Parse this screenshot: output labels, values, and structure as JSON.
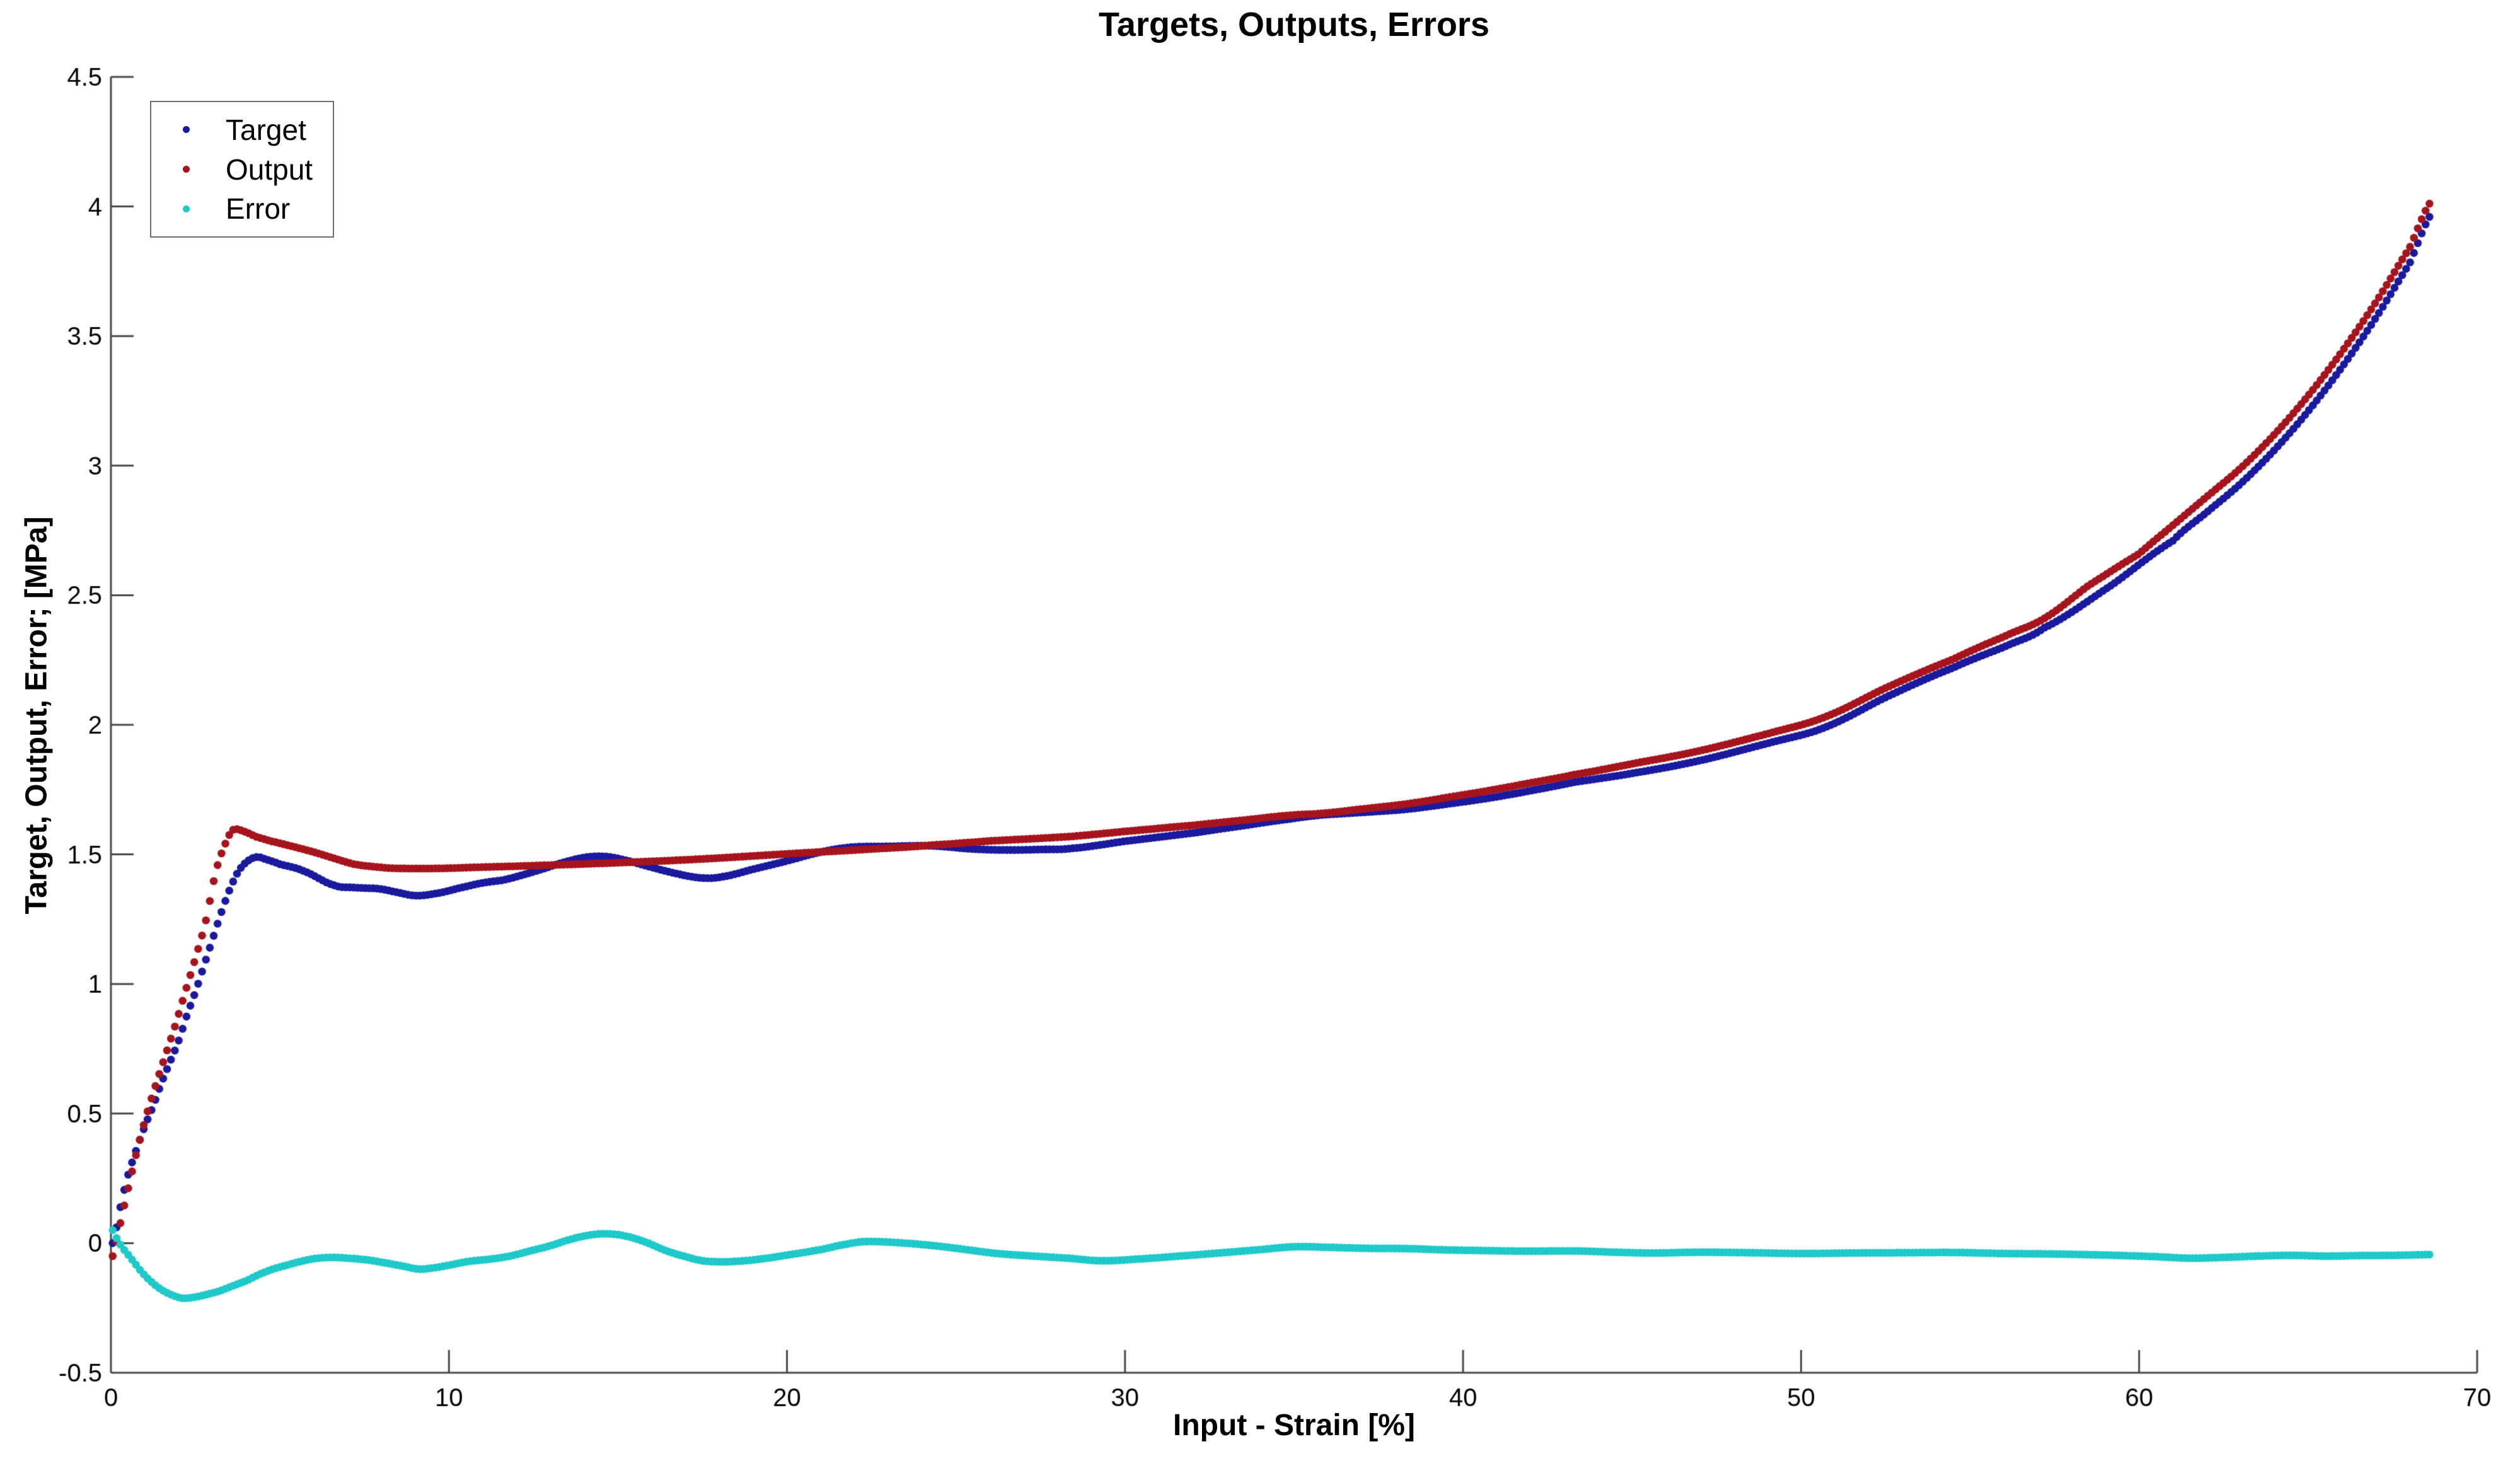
{
  "chart_data": {
    "type": "scatter",
    "title": "Targets, Outputs, Errors",
    "xlabel": "Input - Strain [%]",
    "ylabel": "Target, Output, Error; [MPa]",
    "xlim": [
      0,
      70
    ],
    "ylim": [
      -0.5,
      4.5
    ],
    "grid": false,
    "marker": "dot",
    "xticks": {
      "values": [
        0,
        10,
        20,
        30,
        40,
        50,
        60,
        70
      ],
      "labels": [
        "0",
        "10",
        "20",
        "30",
        "40",
        "50",
        "60",
        "70"
      ]
    },
    "yticks": {
      "values": [
        -0.5,
        0,
        0.5,
        1,
        1.5,
        2,
        2.5,
        3,
        3.5,
        4,
        4.5
      ],
      "labels": [
        "-0.5",
        "0",
        "0.5",
        "1",
        "1.5",
        "2",
        "2.5",
        "3",
        "3.5",
        "4",
        "4.5"
      ]
    },
    "legend": {
      "position": "top-left",
      "entries": [
        {
          "label": "Target",
          "color": "#1A1A9E"
        },
        {
          "label": "Output",
          "color": "#A6151D"
        },
        {
          "label": "Error",
          "color": "#1FC9C9"
        }
      ]
    },
    "series": [
      {
        "name": "Target",
        "color": "#1A1A9E",
        "points": [
          [
            0.05,
            0.0
          ],
          [
            0.3,
            0.15
          ],
          [
            0.5,
            0.26
          ],
          [
            0.75,
            0.36
          ],
          [
            1,
            0.45
          ],
          [
            1.25,
            0.53
          ],
          [
            1.5,
            0.62
          ],
          [
            1.75,
            0.7
          ],
          [
            2,
            0.78
          ],
          [
            2.25,
            0.88
          ],
          [
            2.5,
            0.97
          ],
          [
            2.75,
            1.07
          ],
          [
            3,
            1.17
          ],
          [
            3.25,
            1.27
          ],
          [
            3.5,
            1.36
          ],
          [
            3.75,
            1.43
          ],
          [
            4,
            1.47
          ],
          [
            4.3,
            1.49
          ],
          [
            4.6,
            1.48
          ],
          [
            5,
            1.462
          ],
          [
            5.7,
            1.436
          ],
          [
            6.6,
            1.381
          ],
          [
            7.2,
            1.372
          ],
          [
            7.9,
            1.368
          ],
          [
            8.3,
            1.358
          ],
          [
            9,
            1.341
          ],
          [
            9.7,
            1.351
          ],
          [
            10.3,
            1.37
          ],
          [
            11,
            1.39
          ],
          [
            11.6,
            1.401
          ],
          [
            12.1,
            1.418
          ],
          [
            12.7,
            1.441
          ],
          [
            13.3,
            1.466
          ],
          [
            14,
            1.488
          ],
          [
            14.6,
            1.492
          ],
          [
            15.2,
            1.478
          ],
          [
            16,
            1.45
          ],
          [
            16.8,
            1.424
          ],
          [
            17.5,
            1.409
          ],
          [
            18.1,
            1.414
          ],
          [
            19,
            1.443
          ],
          [
            20,
            1.475
          ],
          [
            21,
            1.509
          ],
          [
            21.9,
            1.528
          ],
          [
            23,
            1.531
          ],
          [
            24.3,
            1.533
          ],
          [
            25.5,
            1.521
          ],
          [
            26.5,
            1.517
          ],
          [
            27.5,
            1.519
          ],
          [
            28.4,
            1.523
          ],
          [
            30,
            1.551
          ],
          [
            32.1,
            1.584
          ],
          [
            33.5,
            1.611
          ],
          [
            34.9,
            1.637
          ],
          [
            35.8,
            1.652
          ],
          [
            37,
            1.662
          ],
          [
            38.3,
            1.674
          ],
          [
            39.5,
            1.694
          ],
          [
            40.8,
            1.718
          ],
          [
            42,
            1.746
          ],
          [
            43.3,
            1.779
          ],
          [
            45.1,
            1.815
          ],
          [
            47,
            1.862
          ],
          [
            49,
            1.928
          ],
          [
            50.7,
            1.99
          ],
          [
            52.6,
            2.112
          ],
          [
            54.5,
            2.22
          ],
          [
            56,
            2.3
          ],
          [
            57.2,
            2.375
          ],
          [
            59.2,
            2.54
          ],
          [
            61,
            2.71
          ],
          [
            62,
            2.82
          ],
          [
            63,
            2.93
          ],
          [
            64,
            3.06
          ],
          [
            65,
            3.21
          ],
          [
            66,
            3.38
          ],
          [
            67,
            3.57
          ],
          [
            68,
            3.78
          ],
          [
            68.7,
            3.98
          ]
        ]
      },
      {
        "name": "Output",
        "color": "#A6151D",
        "points": [
          [
            0.05,
            -0.05
          ],
          [
            0.25,
            0.06
          ],
          [
            0.45,
            0.18
          ],
          [
            0.7,
            0.32
          ],
          [
            1,
            0.47
          ],
          [
            1.3,
            0.6
          ],
          [
            1.6,
            0.72
          ],
          [
            1.9,
            0.84
          ],
          [
            2.2,
            0.97
          ],
          [
            2.5,
            1.1
          ],
          [
            2.8,
            1.24
          ],
          [
            3.1,
            1.43
          ],
          [
            3.35,
            1.53
          ],
          [
            3.6,
            1.594
          ],
          [
            3.95,
            1.588
          ],
          [
            4.3,
            1.568
          ],
          [
            4.7,
            1.552
          ],
          [
            5.4,
            1.53
          ],
          [
            6,
            1.509
          ],
          [
            6.6,
            1.485
          ],
          [
            7.2,
            1.462
          ],
          [
            8,
            1.45
          ],
          [
            8.5,
            1.446
          ],
          [
            9.7,
            1.446
          ],
          [
            11,
            1.451
          ],
          [
            12.1,
            1.455
          ],
          [
            13.5,
            1.461
          ],
          [
            15,
            1.468
          ],
          [
            16.5,
            1.476
          ],
          [
            18.1,
            1.487
          ],
          [
            20,
            1.502
          ],
          [
            21.9,
            1.516
          ],
          [
            23.5,
            1.528
          ],
          [
            24.3,
            1.536
          ],
          [
            26,
            1.552
          ],
          [
            28.4,
            1.569
          ],
          [
            30,
            1.589
          ],
          [
            32.1,
            1.613
          ],
          [
            33.5,
            1.632
          ],
          [
            34.9,
            1.651
          ],
          [
            35.8,
            1.658
          ],
          [
            37,
            1.675
          ],
          [
            38.3,
            1.694
          ],
          [
            39.5,
            1.719
          ],
          [
            40.8,
            1.747
          ],
          [
            42,
            1.776
          ],
          [
            43.3,
            1.808
          ],
          [
            45.1,
            1.852
          ],
          [
            47,
            1.9
          ],
          [
            49,
            1.965
          ],
          [
            50.7,
            2.03
          ],
          [
            52.6,
            2.148
          ],
          [
            54.5,
            2.253
          ],
          [
            56,
            2.34
          ],
          [
            57.2,
            2.411
          ],
          [
            58.5,
            2.537
          ],
          [
            60,
            2.66
          ],
          [
            61,
            2.77
          ],
          [
            62,
            2.88
          ],
          [
            63,
            2.99
          ],
          [
            64,
            3.12
          ],
          [
            65,
            3.27
          ],
          [
            66,
            3.44
          ],
          [
            67,
            3.63
          ],
          [
            68,
            3.84
          ],
          [
            68.7,
            4.03
          ]
        ]
      },
      {
        "name": "Error",
        "color": "#1FC9C9",
        "points": [
          [
            0.05,
            0.05
          ],
          [
            0.2,
            0.01
          ],
          [
            0.35,
            -0.02
          ],
          [
            0.6,
            -0.06
          ],
          [
            0.9,
            -0.11
          ],
          [
            1.2,
            -0.15
          ],
          [
            1.5,
            -0.18
          ],
          [
            1.8,
            -0.2
          ],
          [
            2.1,
            -0.212
          ],
          [
            2.4,
            -0.21
          ],
          [
            2.8,
            -0.199
          ],
          [
            3.2,
            -0.185
          ],
          [
            3.6,
            -0.165
          ],
          [
            4,
            -0.145
          ],
          [
            4.4,
            -0.12
          ],
          [
            4.8,
            -0.1
          ],
          [
            5.2,
            -0.085
          ],
          [
            5.6,
            -0.071
          ],
          [
            6,
            -0.06
          ],
          [
            6.5,
            -0.055
          ],
          [
            7,
            -0.058
          ],
          [
            7.6,
            -0.065
          ],
          [
            8.2,
            -0.078
          ],
          [
            8.7,
            -0.09
          ],
          [
            9.1,
            -0.1
          ],
          [
            9.5,
            -0.096
          ],
          [
            10,
            -0.085
          ],
          [
            10.6,
            -0.07
          ],
          [
            11.2,
            -0.062
          ],
          [
            11.8,
            -0.05
          ],
          [
            12.4,
            -0.03
          ],
          [
            13,
            -0.01
          ],
          [
            13.6,
            0.015
          ],
          [
            14.2,
            0.032
          ],
          [
            14.7,
            0.036
          ],
          [
            15.2,
            0.028
          ],
          [
            15.8,
            0.005
          ],
          [
            16.4,
            -0.028
          ],
          [
            17,
            -0.052
          ],
          [
            17.5,
            -0.068
          ],
          [
            18,
            -0.072
          ],
          [
            18.5,
            -0.07
          ],
          [
            19.1,
            -0.063
          ],
          [
            20,
            -0.046
          ],
          [
            21,
            -0.025
          ],
          [
            21.8,
            -0.003
          ],
          [
            22.3,
            0.006
          ],
          [
            23,
            0.004
          ],
          [
            23.8,
            -0.003
          ],
          [
            24.5,
            -0.012
          ],
          [
            25.3,
            -0.025
          ],
          [
            26.2,
            -0.04
          ],
          [
            27.3,
            -0.05
          ],
          [
            28.3,
            -0.058
          ],
          [
            29.3,
            -0.068
          ],
          [
            30.3,
            -0.062
          ],
          [
            31.6,
            -0.05
          ],
          [
            32.8,
            -0.038
          ],
          [
            34,
            -0.025
          ],
          [
            35,
            -0.014
          ],
          [
            36,
            -0.016
          ],
          [
            37.2,
            -0.02
          ],
          [
            38.3,
            -0.021
          ],
          [
            39.5,
            -0.026
          ],
          [
            40.8,
            -0.029
          ],
          [
            42,
            -0.031
          ],
          [
            43.3,
            -0.03
          ],
          [
            44.5,
            -0.035
          ],
          [
            45.6,
            -0.038
          ],
          [
            47,
            -0.035
          ],
          [
            48.5,
            -0.037
          ],
          [
            50,
            -0.04
          ],
          [
            51.5,
            -0.038
          ],
          [
            53,
            -0.037
          ],
          [
            54.5,
            -0.036
          ],
          [
            56,
            -0.04
          ],
          [
            57.5,
            -0.042
          ],
          [
            59,
            -0.046
          ],
          [
            60.5,
            -0.052
          ],
          [
            61.5,
            -0.058
          ],
          [
            62.5,
            -0.055
          ],
          [
            63.5,
            -0.05
          ],
          [
            64.5,
            -0.047
          ],
          [
            65.5,
            -0.05
          ],
          [
            66.5,
            -0.048
          ],
          [
            67.5,
            -0.047
          ],
          [
            68.7,
            -0.044
          ]
        ]
      }
    ]
  },
  "colors": {
    "background": "#ffffff",
    "axis": "#4a4a4a",
    "tick_text": "#000000",
    "legend_border": "#6e6e6e"
  }
}
